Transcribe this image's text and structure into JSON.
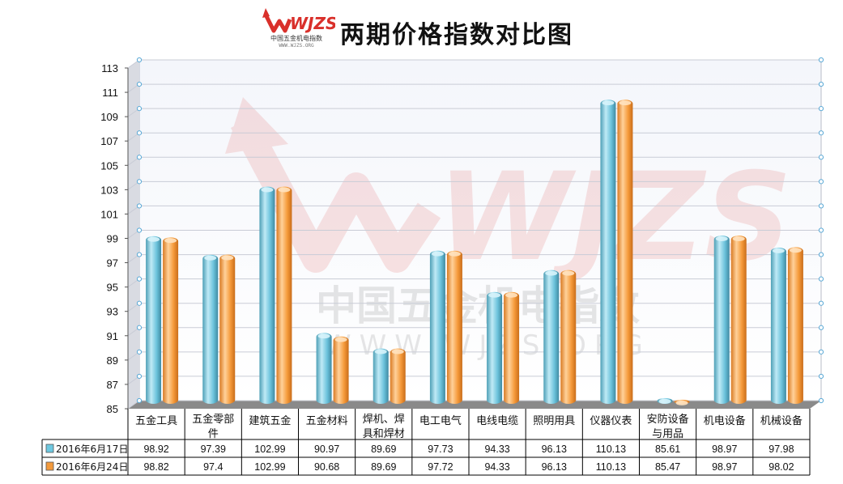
{
  "header": {
    "title": "两期价格指数对比图",
    "logo_text": "WJZS",
    "logo_subtitle": "中国五金机电指数",
    "logo_url": "WWW.WJZS.ORG"
  },
  "colors": {
    "series1": "#6ec8e0",
    "series2": "#f39a3c",
    "arrow": "#d9302b",
    "grid": "#c9ccd6"
  },
  "chart_data": {
    "type": "bar",
    "title": "两期价格指数对比图",
    "categories": [
      "五金工具",
      "五金零部件",
      "建筑五金",
      "五金材料",
      "焊机、焊具和焊材",
      "电工电气",
      "电线电缆",
      "照明用具",
      "仪器仪表",
      "安防设备与用品",
      "机电设备",
      "机械设备"
    ],
    "category_lines": [
      [
        "五金工具"
      ],
      [
        "五金零部",
        "件"
      ],
      [
        "建筑五金"
      ],
      [
        "五金材料"
      ],
      [
        "焊机、焊",
        "具和焊材"
      ],
      [
        "电工电气"
      ],
      [
        "电线电缆"
      ],
      [
        "照明用具"
      ],
      [
        "仪器仪表"
      ],
      [
        "安防设备",
        "与用品"
      ],
      [
        "机电设备"
      ],
      [
        "机械设备"
      ]
    ],
    "series": [
      {
        "name": "2016年6月17日",
        "values": [
          98.92,
          97.39,
          102.99,
          90.97,
          89.69,
          97.73,
          94.33,
          96.13,
          110.13,
          85.61,
          98.97,
          97.98
        ]
      },
      {
        "name": "2016年6月24日",
        "values": [
          98.82,
          97.4,
          102.99,
          90.68,
          89.69,
          97.72,
          94.33,
          96.13,
          110.13,
          85.47,
          98.97,
          98.02
        ]
      }
    ],
    "value_labels": [
      [
        "98.92",
        "97.39",
        "102.99",
        "90.97",
        "89.69",
        "97.73",
        "94.33",
        "96.13",
        "110.13",
        "85.61",
        "98.97",
        "97.98"
      ],
      [
        "98.82",
        "97.4",
        "102.99",
        "90.68",
        "89.69",
        "97.72",
        "94.33",
        "96.13",
        "110.13",
        "85.47",
        "98.97",
        "98.02"
      ]
    ],
    "ylim": [
      85,
      113
    ],
    "yticks": [
      "85",
      "87",
      "89",
      "91",
      "93",
      "95",
      "97",
      "99",
      "101",
      "103",
      "105",
      "107",
      "109",
      "111",
      "113"
    ],
    "grid": true,
    "legend": "data-table",
    "watermark": {
      "logo": "WJZS",
      "text": "中国五金机电指数",
      "url": "WWW.WJZS.ORG"
    }
  }
}
